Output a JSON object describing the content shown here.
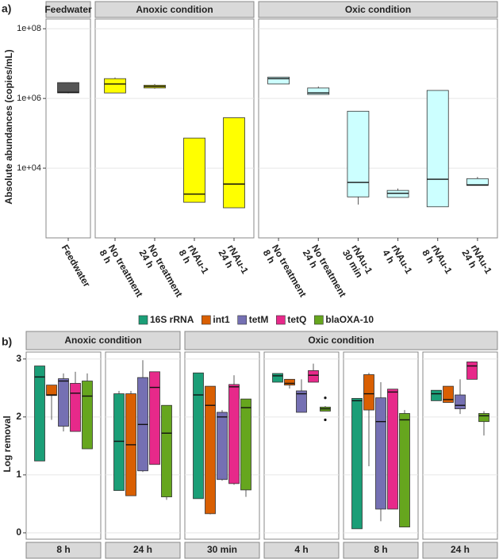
{
  "chart_data": [
    {
      "type": "box",
      "panel_label": "a)",
      "ylabel": "Absolute abundances (copies/mL)",
      "log_scale": true,
      "ylim": [
        100,
        190000000
      ],
      "yticks": [
        {
          "value": 10000,
          "label": "1e+04"
        },
        {
          "value": 1000000,
          "label": "1e+06"
        },
        {
          "value": 100000000,
          "label": "1e+08"
        }
      ],
      "grid": true,
      "facets": [
        {
          "title": "Feedwater",
          "color": "#555555",
          "categories": [
            [
              "Feedwater"
            ]
          ],
          "boxes": [
            {
              "min": 1400000,
              "q1": 1450000,
              "median": 1500000,
              "q3": 2850000,
              "max": 2900000
            }
          ]
        },
        {
          "title": "Anoxic condition",
          "color": "#ffff00",
          "categories": [
            [
              "No treatment",
              "8 h"
            ],
            [
              "No treatment",
              "24 h"
            ],
            [
              "rNAu-1",
              "8 h"
            ],
            [
              "rNAu-1",
              "24 h"
            ]
          ],
          "boxes": [
            {
              "min": 1440000,
              "q1": 1440000,
              "median": 2600000,
              "q3": 3700000,
              "max": 4000000
            },
            {
              "min": 1900000,
              "q1": 2000000,
              "median": 2200000,
              "q3": 2400000,
              "max": 2600000
            },
            {
              "min": 1050,
              "q1": 1050,
              "median": 1800,
              "q3": 73000,
              "max": 73000
            },
            {
              "min": 730,
              "q1": 730,
              "median": 3500,
              "q3": 280000,
              "max": 280000
            }
          ]
        },
        {
          "title": "Oxic condition",
          "color": "#ccffff",
          "categories": [
            [
              "No treatment",
              "8 h"
            ],
            [
              "No treatment",
              "24 h"
            ],
            [
              "rNAu-1",
              "30 min"
            ],
            [
              "rNAu-1",
              "4 h"
            ],
            [
              "rNAu-1",
              "8 h"
            ],
            [
              "rNAu-1",
              "24 h"
            ]
          ],
          "boxes": [
            {
              "min": 2600000,
              "q1": 2600000,
              "median": 3700000,
              "q3": 4100000,
              "max": 4100000
            },
            {
              "min": 1300000,
              "q1": 1300000,
              "median": 1440000,
              "q3": 2000000,
              "max": 2200000
            },
            {
              "min": 900,
              "q1": 1500,
              "median": 3900,
              "q3": 430000,
              "max": 430000
            },
            {
              "min": 1450,
              "q1": 1450,
              "median": 1900,
              "q3": 2300,
              "max": 2600
            },
            {
              "min": 780,
              "q1": 780,
              "median": 4800,
              "q3": 1700000,
              "max": 1700000
            },
            {
              "min": 3200,
              "q1": 3200,
              "median": 3300,
              "q3": 5000,
              "max": 5600
            }
          ]
        }
      ]
    },
    {
      "type": "box",
      "panel_label": "b)",
      "ylabel": "Log removal",
      "ylim": [
        -0.11,
        3.12
      ],
      "yticks": [
        0,
        1,
        2,
        3
      ],
      "grid": true,
      "legend": "top",
      "series": [
        {
          "name": "16S rRNA",
          "color": "#1b9e77"
        },
        {
          "name": "int1",
          "color": "#d95f02"
        },
        {
          "name": "tetM",
          "color": "#7570b3"
        },
        {
          "name": "tetQ",
          "color": "#e7298a"
        },
        {
          "name": "blaOXA-10",
          "color": "#66a61e"
        }
      ],
      "facets": [
        {
          "title": "Anoxic condition",
          "panels": [
            {
              "label": "8 h",
              "boxes": [
                {
                  "min": 1.24,
                  "q1": 1.24,
                  "median": 2.69,
                  "q3": 2.88,
                  "max": 2.88
                },
                {
                  "min": 1.95,
                  "q1": 2.37,
                  "median": 2.38,
                  "q3": 2.55,
                  "max": 2.55
                },
                {
                  "min": 1.75,
                  "q1": 1.84,
                  "median": 2.62,
                  "q3": 2.66,
                  "max": 2.75
                },
                {
                  "min": 1.75,
                  "q1": 1.75,
                  "median": 2.41,
                  "q3": 2.58,
                  "max": 2.78
                },
                {
                  "min": 1.45,
                  "q1": 1.45,
                  "median": 2.36,
                  "q3": 2.62,
                  "max": 2.75
                }
              ]
            },
            {
              "label": "24 h",
              "boxes": [
                {
                  "min": 0.73,
                  "q1": 0.73,
                  "median": 1.58,
                  "q3": 2.4,
                  "max": 2.45
                },
                {
                  "min": 0.64,
                  "q1": 0.64,
                  "median": 1.52,
                  "q3": 2.4,
                  "max": 2.45
                },
                {
                  "min": 1.05,
                  "q1": 1.07,
                  "median": 1.87,
                  "q3": 2.68,
                  "max": 2.98
                },
                {
                  "min": 1.18,
                  "q1": 1.18,
                  "median": 2.51,
                  "q3": 2.78,
                  "max": 2.78
                },
                {
                  "min": 0.57,
                  "q1": 0.62,
                  "median": 1.72,
                  "q3": 2.2,
                  "max": 2.2
                }
              ]
            }
          ]
        },
        {
          "title": "Oxic condition",
          "panels": [
            {
              "label": "30 min",
              "boxes": [
                {
                  "min": 0.59,
                  "q1": 0.59,
                  "median": 2.38,
                  "q3": 2.76,
                  "max": 2.76
                },
                {
                  "min": 0.32,
                  "q1": 0.33,
                  "median": 2.2,
                  "q3": 2.53,
                  "max": 2.53
                },
                {
                  "min": 0.9,
                  "q1": 0.92,
                  "median": 2.0,
                  "q3": 2.08,
                  "max": 2.12
                },
                {
                  "min": 0.83,
                  "q1": 0.85,
                  "median": 2.52,
                  "q3": 2.56,
                  "max": 2.72
                },
                {
                  "min": 0.62,
                  "q1": 0.74,
                  "median": 2.16,
                  "q3": 2.31,
                  "max": 2.31
                }
              ]
            },
            {
              "label": "4 h",
              "boxes": [
                {
                  "min": 2.6,
                  "q1": 2.6,
                  "median": 2.71,
                  "q3": 2.75,
                  "max": 2.75
                },
                {
                  "min": 2.49,
                  "q1": 2.55,
                  "median": 2.58,
                  "q3": 2.65,
                  "max": 2.65
                },
                {
                  "min": 2.08,
                  "q1": 2.08,
                  "median": 2.4,
                  "q3": 2.45,
                  "max": 2.65
                },
                {
                  "min": 2.6,
                  "q1": 2.6,
                  "median": 2.72,
                  "q3": 2.8,
                  "max": 2.92
                },
                {
                  "min": 2.1,
                  "q1": 2.1,
                  "median": 2.14,
                  "q3": 2.17,
                  "max": 2.19,
                  "outliers": [
                    2.33,
                    1.95
                  ]
                }
              ]
            },
            {
              "label": "8 h",
              "boxes": [
                {
                  "min": 0.07,
                  "q1": 0.07,
                  "median": 2.28,
                  "q3": 2.32,
                  "max": 2.32
                },
                {
                  "min": 1.15,
                  "q1": 2.12,
                  "median": 2.4,
                  "q3": 2.73,
                  "max": 2.76
                },
                {
                  "min": 0.2,
                  "q1": 0.41,
                  "median": 1.92,
                  "q3": 2.33,
                  "max": 2.6
                },
                {
                  "min": 0.41,
                  "q1": 0.41,
                  "median": 2.43,
                  "q3": 2.48,
                  "max": 2.48
                },
                {
                  "min": 0.1,
                  "q1": 0.1,
                  "median": 1.95,
                  "q3": 2.06,
                  "max": 2.12
                }
              ]
            },
            {
              "label": "24 h",
              "boxes": [
                {
                  "min": 2.28,
                  "q1": 2.28,
                  "median": 2.4,
                  "q3": 2.46,
                  "max": 2.46
                },
                {
                  "min": 2.25,
                  "q1": 2.25,
                  "median": 2.3,
                  "q3": 2.53,
                  "max": 2.53
                },
                {
                  "min": 2.05,
                  "q1": 2.14,
                  "median": 2.2,
                  "q3": 2.38,
                  "max": 2.65
                },
                {
                  "min": 2.65,
                  "q1": 2.65,
                  "median": 2.88,
                  "q3": 2.95,
                  "max": 2.96
                },
                {
                  "min": 1.68,
                  "q1": 1.92,
                  "median": 2.02,
                  "q3": 2.06,
                  "max": 2.1
                }
              ]
            }
          ]
        }
      ]
    }
  ]
}
